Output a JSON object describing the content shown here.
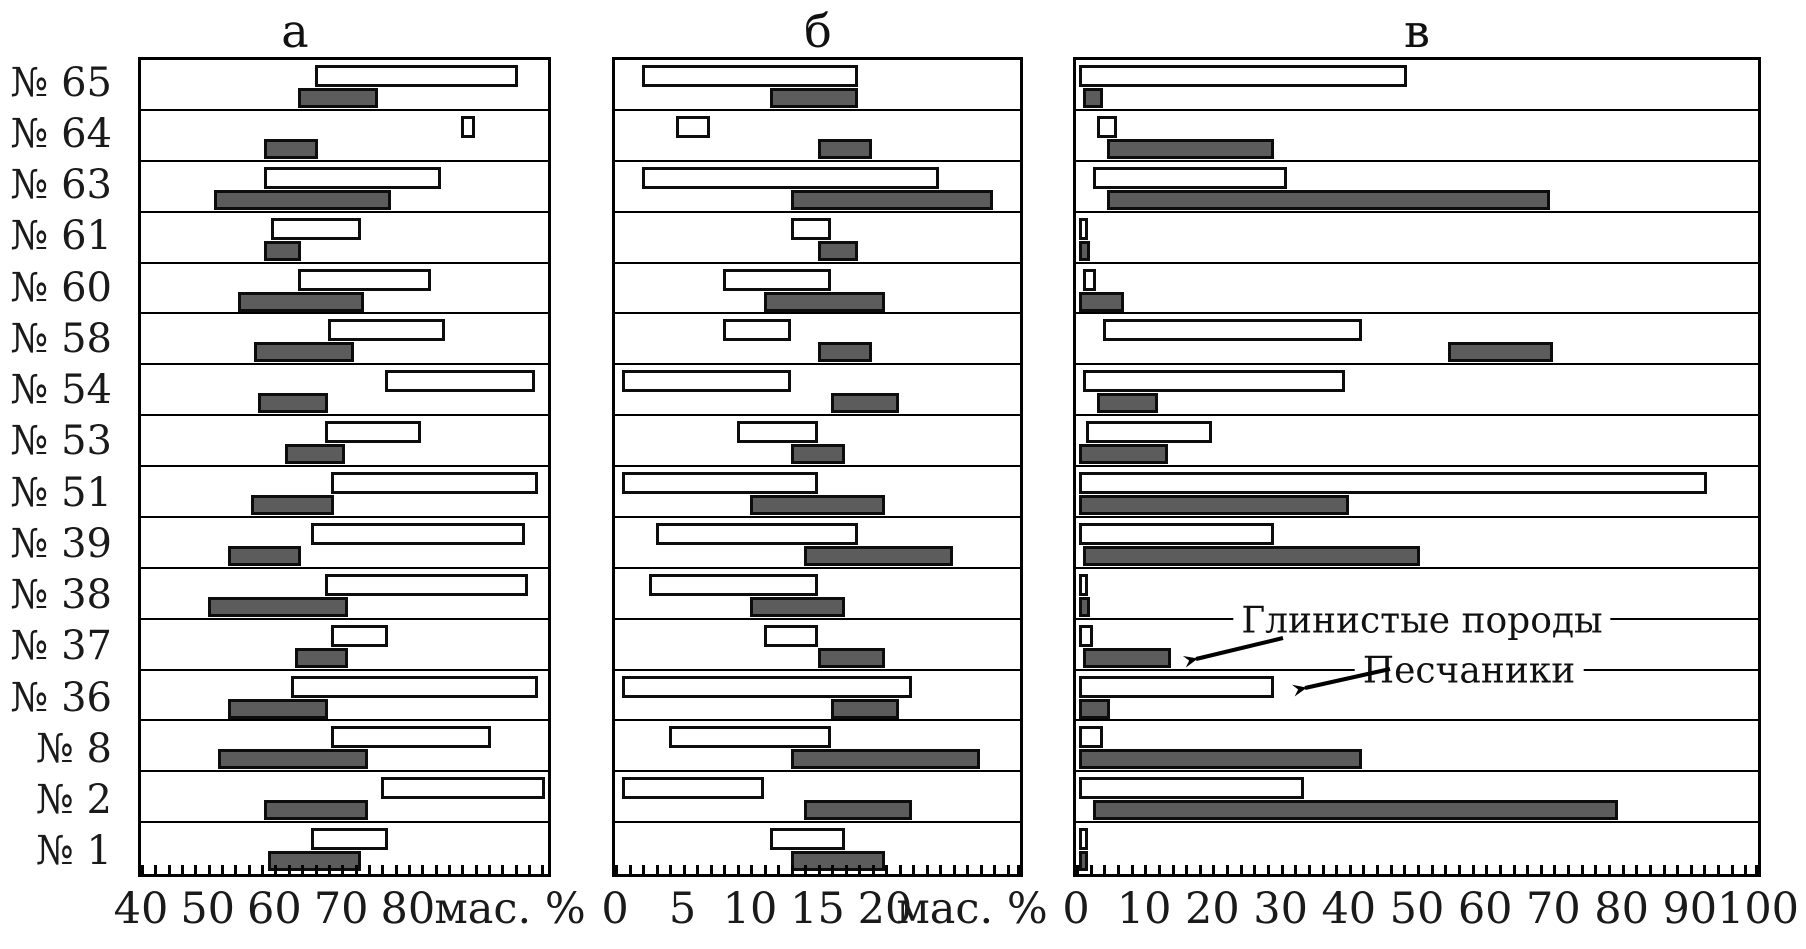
{
  "chart_data": {
    "type": "bar",
    "subtype": "horizontal-interval-ranges",
    "description_visible_text_only": true,
    "colors": {
      "clay_fill": "#5c5c5c",
      "sand_fill": "#ffffff",
      "outline": "#000000"
    },
    "legend": {
      "clay_label": "Глинистые породы",
      "sand_label": "Песчаники"
    },
    "panels": [
      {
        "id": "a",
        "title": "а",
        "xlabel": "мас. %",
        "xlim": [
          40,
          101
        ],
        "tick_values": [
          40,
          50,
          60,
          70,
          80
        ],
        "tick_labels": [
          "40",
          "50",
          "60",
          "70",
          "80"
        ],
        "minor_tick_step": 2
      },
      {
        "id": "b",
        "title": "б",
        "xlabel": "мас. %",
        "xlim": [
          0,
          30
        ],
        "tick_values": [
          0,
          5,
          10,
          15,
          20
        ],
        "tick_labels": [
          "0",
          "5",
          "10",
          "15",
          "20"
        ],
        "minor_tick_step": 1
      },
      {
        "id": "c",
        "title": "в",
        "xlabel": "",
        "xlim": [
          0,
          100
        ],
        "tick_values": [
          0,
          10,
          20,
          30,
          40,
          50,
          60,
          70,
          80,
          90,
          100
        ],
        "tick_labels": [
          "0",
          "10",
          "20",
          "30",
          "40",
          "50",
          "60",
          "70",
          "80",
          "90",
          "100"
        ],
        "minor_tick_step": 2
      }
    ],
    "rows": [
      {
        "label": "№ 65",
        "a": {
          "sandstone": [
            66,
            96.5
          ],
          "clay": [
            63.5,
            75.5
          ]
        },
        "b": {
          "sandstone": [
            2,
            18
          ],
          "clay": [
            11.5,
            18
          ]
        },
        "c": {
          "sandstone": [
            0.5,
            48.5
          ],
          "clay": [
            1,
            4
          ]
        }
      },
      {
        "label": "№ 64",
        "a": {
          "sandstone": [
            88,
            90
          ],
          "clay": [
            58.5,
            66.5
          ]
        },
        "b": {
          "sandstone": [
            4.5,
            7
          ],
          "clay": [
            15,
            19
          ]
        },
        "c": {
          "sandstone": [
            3,
            6
          ],
          "clay": [
            4.5,
            29
          ]
        }
      },
      {
        "label": "№ 63",
        "a": {
          "sandstone": [
            58.5,
            85
          ],
          "clay": [
            51,
            77.5
          ]
        },
        "b": {
          "sandstone": [
            2,
            24
          ],
          "clay": [
            13,
            28
          ]
        },
        "c": {
          "sandstone": [
            2.5,
            31
          ],
          "clay": [
            4.5,
            69.5
          ]
        }
      },
      {
        "label": "№ 61",
        "a": {
          "sandstone": [
            59.5,
            73
          ],
          "clay": [
            58.5,
            64
          ]
        },
        "b": {
          "sandstone": [
            13,
            16
          ],
          "clay": [
            15,
            18
          ]
        },
        "c": {
          "sandstone": [
            0.5,
            1.5
          ],
          "clay": [
            0.5,
            2
          ]
        }
      },
      {
        "label": "№ 60",
        "a": {
          "sandstone": [
            63.5,
            83.5
          ],
          "clay": [
            54.5,
            73.5
          ]
        },
        "b": {
          "sandstone": [
            8,
            16
          ],
          "clay": [
            11,
            20
          ]
        },
        "c": {
          "sandstone": [
            1,
            3
          ],
          "clay": [
            0.5,
            7
          ]
        }
      },
      {
        "label": "№ 58",
        "a": {
          "sandstone": [
            68,
            85.5
          ],
          "clay": [
            57,
            72
          ]
        },
        "b": {
          "sandstone": [
            8,
            13
          ],
          "clay": [
            15,
            19
          ]
        },
        "c": {
          "sandstone": [
            4,
            42
          ],
          "clay": [
            54.5,
            70
          ]
        }
      },
      {
        "label": "№ 54",
        "a": {
          "sandstone": [
            76.5,
            99
          ],
          "clay": [
            57.5,
            68
          ]
        },
        "b": {
          "sandstone": [
            0.5,
            13
          ],
          "clay": [
            16,
            21
          ]
        },
        "c": {
          "sandstone": [
            1,
            39.5
          ],
          "clay": [
            3,
            12
          ]
        }
      },
      {
        "label": "№ 53",
        "a": {
          "sandstone": [
            67.5,
            82
          ],
          "clay": [
            61.5,
            70.5
          ]
        },
        "b": {
          "sandstone": [
            9,
            15
          ],
          "clay": [
            13,
            17
          ]
        },
        "c": {
          "sandstone": [
            1.5,
            20
          ],
          "clay": [
            0.5,
            13.5
          ]
        }
      },
      {
        "label": "№ 51",
        "a": {
          "sandstone": [
            68.5,
            99.5
          ],
          "clay": [
            56.5,
            69
          ]
        },
        "b": {
          "sandstone": [
            0.5,
            15
          ],
          "clay": [
            10,
            20
          ]
        },
        "c": {
          "sandstone": [
            0.5,
            92.5
          ],
          "clay": [
            0.5,
            40
          ]
        }
      },
      {
        "label": "№ 39",
        "a": {
          "sandstone": [
            65.5,
            97.5
          ],
          "clay": [
            53,
            64
          ]
        },
        "b": {
          "sandstone": [
            3,
            18
          ],
          "clay": [
            14,
            25
          ]
        },
        "c": {
          "sandstone": [
            0.5,
            29
          ],
          "clay": [
            1,
            50.5
          ]
        }
      },
      {
        "label": "№ 38",
        "a": {
          "sandstone": [
            67.5,
            98
          ],
          "clay": [
            50,
            71
          ]
        },
        "b": {
          "sandstone": [
            2.5,
            15
          ],
          "clay": [
            10,
            17
          ]
        },
        "c": {
          "sandstone": [
            0.5,
            1.5
          ],
          "clay": [
            0.5,
            2
          ]
        }
      },
      {
        "label": "№ 37",
        "a": {
          "sandstone": [
            68.5,
            77
          ],
          "clay": [
            63,
            71
          ]
        },
        "b": {
          "sandstone": [
            11,
            15
          ],
          "clay": [
            15,
            20
          ]
        },
        "c": {
          "sandstone": [
            0.5,
            2.5
          ],
          "clay": [
            1,
            14
          ]
        }
      },
      {
        "label": "№ 36",
        "a": {
          "sandstone": [
            62.5,
            99.5
          ],
          "clay": [
            53,
            68
          ]
        },
        "b": {
          "sandstone": [
            0.5,
            22
          ],
          "clay": [
            16,
            21
          ]
        },
        "c": {
          "sandstone": [
            0.5,
            29
          ],
          "clay": [
            0.5,
            5
          ]
        }
      },
      {
        "label": "№ 8",
        "a": {
          "sandstone": [
            68.5,
            92.5
          ],
          "clay": [
            51.5,
            74
          ]
        },
        "b": {
          "sandstone": [
            4,
            16
          ],
          "clay": [
            13,
            27
          ]
        },
        "c": {
          "sandstone": [
            0.5,
            4
          ],
          "clay": [
            0.5,
            42
          ]
        }
      },
      {
        "label": "№ 2",
        "a": {
          "sandstone": [
            76,
            100.5
          ],
          "clay": [
            58.5,
            74
          ]
        },
        "b": {
          "sandstone": [
            0.5,
            11
          ],
          "clay": [
            14,
            22
          ]
        },
        "c": {
          "sandstone": [
            0.5,
            33.5
          ],
          "clay": [
            2.5,
            79.5
          ]
        }
      },
      {
        "label": "№ 1",
        "a": {
          "sandstone": [
            65.5,
            77
          ],
          "clay": [
            59,
            73
          ]
        },
        "b": {
          "sandstone": [
            11.5,
            17
          ],
          "clay": [
            13,
            20
          ]
        },
        "c": {
          "sandstone": [
            0.5,
            1.5
          ],
          "clay": [
            0.5,
            1.5
          ]
        }
      }
    ]
  }
}
